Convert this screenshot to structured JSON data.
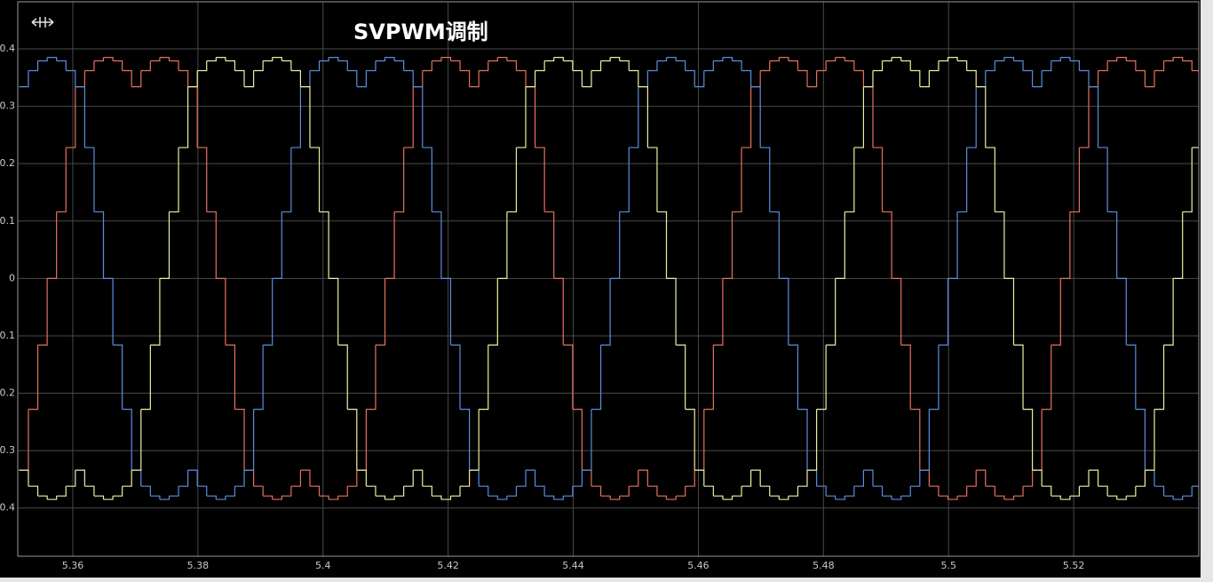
{
  "chart_data": {
    "type": "step",
    "title": "SVPWM调制",
    "xlim": [
      5.3512,
      5.54
    ],
    "ylim": [
      -0.484,
      0.482
    ],
    "xticks": [
      5.36,
      5.38,
      5.4,
      5.42,
      5.44,
      5.46,
      5.48,
      5.5,
      5.52
    ],
    "yticks": [
      -0.4,
      -0.3,
      -0.2,
      -0.1,
      0,
      0.1,
      0.2,
      0.3,
      0.4
    ],
    "grid": true,
    "x": [
      5.3514,
      5.3529,
      5.3544,
      5.3559,
      5.3574,
      5.3589,
      5.3604,
      5.3619,
      5.3634,
      5.3649,
      5.3664,
      5.3679,
      5.3694,
      5.3709,
      5.3724,
      5.3739,
      5.3754,
      5.3769,
      5.3784,
      5.3799,
      5.3814,
      5.3829,
      5.3844,
      5.3859,
      5.3874,
      5.3889,
      5.3904,
      5.3919,
      5.3934,
      5.3949,
      5.3964,
      5.3979,
      5.3994,
      5.4009,
      5.4024,
      5.4039,
      5.4054,
      5.4069,
      5.4084,
      5.4099,
      5.4114,
      5.4129,
      5.4144,
      5.4159,
      5.4174,
      5.4189,
      5.4204,
      5.4219,
      5.4234,
      5.4249,
      5.4264,
      5.4279,
      5.4294,
      5.4309,
      5.4324,
      5.4339,
      5.4354,
      5.4369,
      5.4384,
      5.4399,
      5.4414,
      5.4429,
      5.4444,
      5.4459,
      5.4474,
      5.4489,
      5.4504,
      5.4519,
      5.4534,
      5.4549,
      5.4564,
      5.4579,
      5.4594,
      5.4609,
      5.4624,
      5.4639,
      5.4654,
      5.4669,
      5.4684,
      5.4699,
      5.4714,
      5.4729,
      5.4744,
      5.4759,
      5.4774,
      5.4789,
      5.4804,
      5.4819,
      5.4834,
      5.4849,
      5.4864,
      5.4879,
      5.4894,
      5.4909,
      5.4924,
      5.4939,
      5.4954,
      5.4969,
      5.4984,
      5.4999,
      5.5014,
      5.5029,
      5.5044,
      5.5059,
      5.5074,
      5.5089,
      5.5104,
      5.5119,
      5.5134,
      5.5149,
      5.5164,
      5.5179,
      5.5194,
      5.5209,
      5.5224,
      5.5239,
      5.5254,
      5.5269,
      5.5284,
      5.5299,
      5.5314,
      5.5329,
      5.5344,
      5.5359,
      5.5374,
      5.5389
    ],
    "series": [
      {
        "color": "#e8705e",
        "values": [
          -0.334,
          -0.228,
          -0.116,
          0,
          0.116,
          0.228,
          0.334,
          0.362,
          0.379,
          0.385,
          0.379,
          0.362,
          0.334,
          0.362,
          0.379,
          0.385,
          0.379,
          0.362,
          0.334,
          0.228,
          0.116,
          0,
          -0.116,
          -0.228,
          -0.334,
          -0.362,
          -0.379,
          -0.385,
          -0.379,
          -0.362,
          -0.334,
          -0.362,
          -0.379,
          -0.385,
          -0.379,
          -0.362,
          -0.334,
          -0.228,
          -0.116,
          0,
          0.116,
          0.228,
          0.334,
          0.362,
          0.379,
          0.385,
          0.379,
          0.362,
          0.334,
          0.362,
          0.379,
          0.385,
          0.379,
          0.362,
          0.334,
          0.228,
          0.116,
          0,
          -0.116,
          -0.228,
          -0.334,
          -0.362,
          -0.379,
          -0.385,
          -0.379,
          -0.362,
          -0.334,
          -0.362,
          -0.379,
          -0.385,
          -0.379,
          -0.362,
          -0.334,
          -0.228,
          -0.116,
          0,
          0.116,
          0.228,
          0.334,
          0.362,
          0.379,
          0.385,
          0.379,
          0.362,
          0.334,
          0.362,
          0.379,
          0.385,
          0.379,
          0.362,
          0.334,
          0.228,
          0.116,
          0,
          -0.116,
          -0.228,
          -0.334,
          -0.362,
          -0.379,
          -0.385,
          -0.379,
          -0.362,
          -0.334,
          -0.362,
          -0.379,
          -0.385,
          -0.379,
          -0.362,
          -0.334,
          -0.228,
          -0.116,
          0,
          0.116,
          0.228,
          0.334,
          0.362,
          0.379,
          0.385,
          0.379,
          0.362,
          0.334,
          0.362,
          0.379,
          0.385,
          0.379,
          0.362
        ]
      },
      {
        "color": "#5b8de0",
        "values": [
          0.334,
          0.362,
          0.379,
          0.385,
          0.379,
          0.362,
          0.334,
          0.228,
          0.116,
          0,
          -0.116,
          -0.228,
          -0.334,
          -0.362,
          -0.379,
          -0.385,
          -0.379,
          -0.362,
          -0.334,
          -0.362,
          -0.379,
          -0.385,
          -0.379,
          -0.362,
          -0.334,
          -0.228,
          -0.116,
          0,
          0.116,
          0.228,
          0.334,
          0.362,
          0.379,
          0.385,
          0.379,
          0.362,
          0.334,
          0.362,
          0.379,
          0.385,
          0.379,
          0.362,
          0.334,
          0.228,
          0.116,
          0,
          -0.116,
          -0.228,
          -0.334,
          -0.362,
          -0.379,
          -0.385,
          -0.379,
          -0.362,
          -0.334,
          -0.362,
          -0.379,
          -0.385,
          -0.379,
          -0.362,
          -0.334,
          -0.228,
          -0.116,
          0,
          0.116,
          0.228,
          0.334,
          0.362,
          0.379,
          0.385,
          0.379,
          0.362,
          0.334,
          0.362,
          0.379,
          0.385,
          0.379,
          0.362,
          0.334,
          0.228,
          0.116,
          0,
          -0.116,
          -0.228,
          -0.334,
          -0.362,
          -0.379,
          -0.385,
          -0.379,
          -0.362,
          -0.334,
          -0.362,
          -0.379,
          -0.385,
          -0.379,
          -0.362,
          -0.334,
          -0.228,
          -0.116,
          0,
          0.116,
          0.228,
          0.334,
          0.362,
          0.379,
          0.385,
          0.379,
          0.362,
          0.334,
          0.362,
          0.379,
          0.385,
          0.379,
          0.362,
          0.334,
          0.228,
          0.116,
          0,
          -0.116,
          -0.228,
          -0.334,
          -0.362,
          -0.379,
          -0.385,
          -0.379,
          -0.362
        ]
      },
      {
        "color": "#eeeea2",
        "values": [
          -0.334,
          -0.362,
          -0.379,
          -0.385,
          -0.379,
          -0.362,
          -0.334,
          -0.362,
          -0.379,
          -0.385,
          -0.379,
          -0.362,
          -0.334,
          -0.228,
          -0.116,
          0,
          0.116,
          0.228,
          0.334,
          0.362,
          0.379,
          0.385,
          0.379,
          0.362,
          0.334,
          0.362,
          0.379,
          0.385,
          0.379,
          0.362,
          0.334,
          0.228,
          0.116,
          0,
          -0.116,
          -0.228,
          -0.334,
          -0.362,
          -0.379,
          -0.385,
          -0.379,
          -0.362,
          -0.334,
          -0.362,
          -0.379,
          -0.385,
          -0.379,
          -0.362,
          -0.334,
          -0.228,
          -0.116,
          0,
          0.116,
          0.228,
          0.334,
          0.362,
          0.379,
          0.385,
          0.379,
          0.362,
          0.334,
          0.362,
          0.379,
          0.385,
          0.379,
          0.362,
          0.334,
          0.228,
          0.116,
          0,
          -0.116,
          -0.228,
          -0.334,
          -0.362,
          -0.379,
          -0.385,
          -0.379,
          -0.362,
          -0.334,
          -0.362,
          -0.379,
          -0.385,
          -0.379,
          -0.362,
          -0.334,
          -0.228,
          -0.116,
          0,
          0.116,
          0.228,
          0.334,
          0.362,
          0.379,
          0.385,
          0.379,
          0.362,
          0.334,
          0.362,
          0.379,
          0.385,
          0.379,
          0.362,
          0.334,
          0.228,
          0.116,
          0,
          -0.116,
          -0.228,
          -0.334,
          -0.362,
          -0.379,
          -0.385,
          -0.379,
          -0.362,
          -0.334,
          -0.362,
          -0.379,
          -0.385,
          -0.379,
          -0.362,
          -0.334,
          -0.228,
          -0.116,
          0,
          0.116,
          0.228
        ]
      }
    ]
  }
}
